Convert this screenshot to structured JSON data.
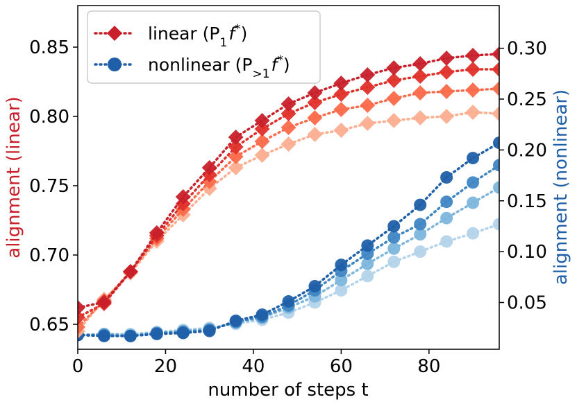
{
  "chart_data": {
    "type": "line",
    "xlabel": "number of steps t",
    "xlim": [
      0,
      96
    ],
    "x_ticks": [
      0,
      20,
      40,
      60,
      80
    ],
    "left_axis": {
      "label": "alignment (linear)",
      "color": "#c8202a",
      "ylim": [
        0.632,
        0.88
      ],
      "ticks": [
        0.65,
        0.7,
        0.75,
        0.8,
        0.85
      ],
      "tick_labels": [
        "0.65",
        "0.70",
        "0.75",
        "0.80",
        "0.85"
      ]
    },
    "right_axis": {
      "label": "alignment (nonlinear)",
      "color": "#1f5fa8",
      "ylim": [
        0.004,
        0.342
      ],
      "ticks": [
        0.05,
        0.1,
        0.15,
        0.2,
        0.25,
        0.3
      ],
      "tick_labels": [
        "0.05",
        "0.10",
        "0.15",
        "0.20",
        "0.25",
        "0.30"
      ]
    },
    "legend": {
      "placement": "top-left",
      "entries": [
        {
          "label_main": "linear (P",
          "label_sub": "1",
          "label_fn": "f",
          "label_sup": "*",
          "label_close": ")",
          "marker": "diamond",
          "color": "#c8202a"
        },
        {
          "label_main": "nonlinear (P",
          "label_sub": ">1",
          "label_fn": "f",
          "label_sup": "*",
          "label_close": ")",
          "marker": "circle",
          "color": "#1f5fa8"
        }
      ]
    },
    "x": [
      0,
      6,
      12,
      18,
      24,
      30,
      36,
      42,
      48,
      54,
      60,
      66,
      72,
      78,
      84,
      90,
      96
    ],
    "series_linear": [
      {
        "name": "linear-1",
        "color": "#fcae91",
        "values": [
          0.645,
          0.668,
          0.687,
          0.71,
          0.729,
          0.748,
          0.763,
          0.772,
          0.78,
          0.787,
          0.79,
          0.795,
          0.797,
          0.799,
          0.8,
          0.803,
          0.802
        ]
      },
      {
        "name": "linear-2",
        "color": "#fb6a4a",
        "values": [
          0.648,
          0.667,
          0.688,
          0.712,
          0.733,
          0.753,
          0.771,
          0.782,
          0.792,
          0.799,
          0.805,
          0.808,
          0.813,
          0.817,
          0.818,
          0.819,
          0.82
        ]
      },
      {
        "name": "linear-3",
        "color": "#e0302a",
        "values": [
          0.655,
          0.665,
          0.688,
          0.714,
          0.737,
          0.758,
          0.778,
          0.791,
          0.802,
          0.81,
          0.816,
          0.821,
          0.826,
          0.829,
          0.832,
          0.834,
          0.834
        ]
      },
      {
        "name": "linear-4",
        "color": "#c8202a",
        "values": [
          0.662,
          0.666,
          0.688,
          0.716,
          0.742,
          0.763,
          0.785,
          0.797,
          0.809,
          0.817,
          0.824,
          0.83,
          0.835,
          0.838,
          0.842,
          0.844,
          0.845
        ]
      }
    ],
    "series_nonlinear": [
      {
        "name": "nonlinear-1",
        "color": "#b3d3ea",
        "values": [
          0.018,
          0.019,
          0.019,
          0.021,
          0.023,
          0.025,
          0.029,
          0.033,
          0.04,
          0.05,
          0.062,
          0.076,
          0.09,
          0.1,
          0.11,
          0.118,
          0.127
        ]
      },
      {
        "name": "nonlinear-2",
        "color": "#7db6dc",
        "values": [
          0.018,
          0.019,
          0.018,
          0.02,
          0.022,
          0.024,
          0.03,
          0.035,
          0.045,
          0.056,
          0.072,
          0.088,
          0.103,
          0.117,
          0.133,
          0.148,
          0.163
        ]
      },
      {
        "name": "nonlinear-3",
        "color": "#3f86c4",
        "values": [
          0.018,
          0.018,
          0.017,
          0.02,
          0.021,
          0.023,
          0.031,
          0.036,
          0.047,
          0.062,
          0.081,
          0.098,
          0.114,
          0.127,
          0.149,
          0.168,
          0.185
        ]
      },
      {
        "name": "nonlinear-4",
        "color": "#1f5fa8",
        "values": [
          0.018,
          0.017,
          0.017,
          0.019,
          0.02,
          0.022,
          0.032,
          0.038,
          0.051,
          0.066,
          0.087,
          0.106,
          0.125,
          0.146,
          0.173,
          0.192,
          0.207
        ]
      }
    ]
  }
}
